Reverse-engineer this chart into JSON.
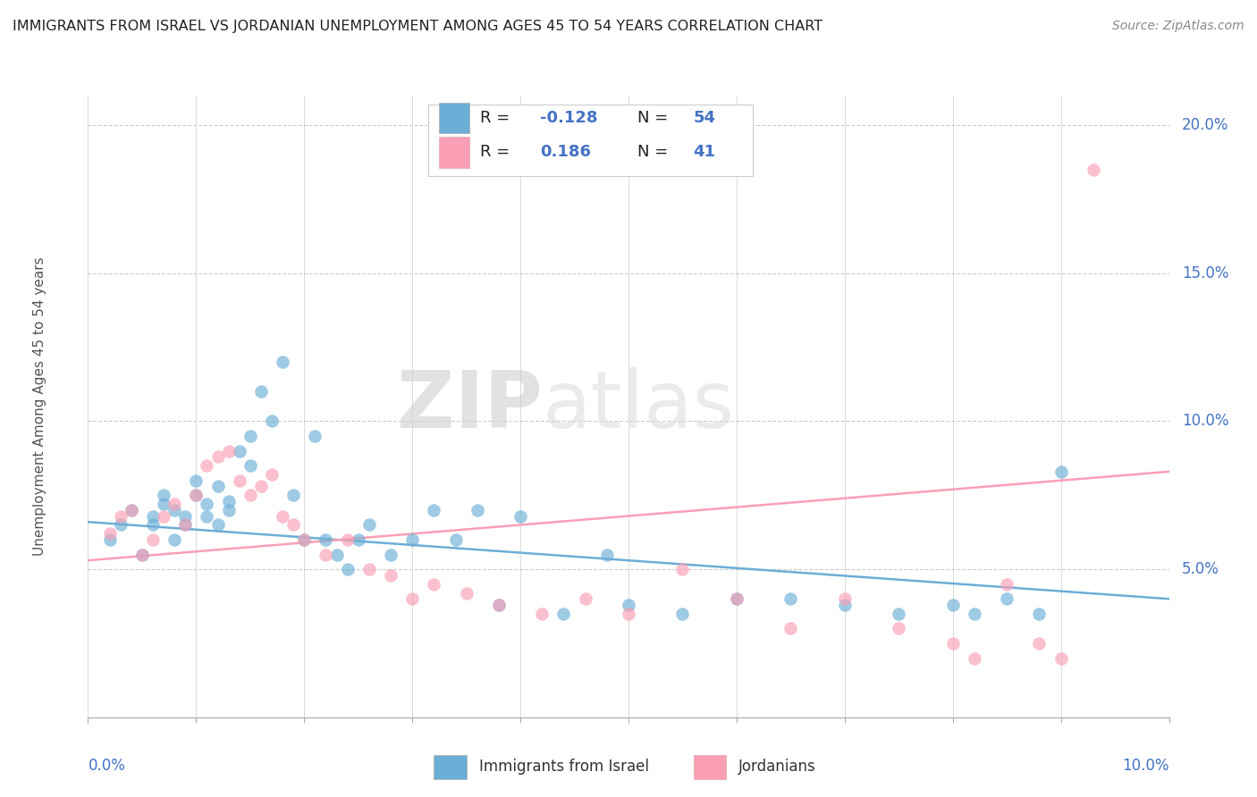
{
  "title": "IMMIGRANTS FROM ISRAEL VS JORDANIAN UNEMPLOYMENT AMONG AGES 45 TO 54 YEARS CORRELATION CHART",
  "source": "Source: ZipAtlas.com",
  "ylabel": "Unemployment Among Ages 45 to 54 years",
  "xlim": [
    0.0,
    0.1
  ],
  "ylim": [
    0.0,
    0.21
  ],
  "yticks": [
    0.05,
    0.1,
    0.15,
    0.2
  ],
  "ytick_labels": [
    "5.0%",
    "10.0%",
    "15.0%",
    "20.0%"
  ],
  "color_blue": "#6baed6",
  "color_pink": "#fa9fb5",
  "israel_x": [
    0.002,
    0.003,
    0.004,
    0.005,
    0.006,
    0.006,
    0.007,
    0.007,
    0.008,
    0.008,
    0.009,
    0.009,
    0.01,
    0.01,
    0.011,
    0.011,
    0.012,
    0.012,
    0.013,
    0.013,
    0.014,
    0.015,
    0.015,
    0.016,
    0.017,
    0.018,
    0.019,
    0.02,
    0.021,
    0.022,
    0.023,
    0.024,
    0.025,
    0.026,
    0.028,
    0.03,
    0.032,
    0.034,
    0.036,
    0.038,
    0.04,
    0.044,
    0.048,
    0.05,
    0.055,
    0.06,
    0.065,
    0.07,
    0.075,
    0.08,
    0.082,
    0.085,
    0.088,
    0.09
  ],
  "israel_y": [
    0.06,
    0.065,
    0.07,
    0.055,
    0.065,
    0.068,
    0.072,
    0.075,
    0.06,
    0.07,
    0.065,
    0.068,
    0.075,
    0.08,
    0.068,
    0.072,
    0.065,
    0.078,
    0.07,
    0.073,
    0.09,
    0.085,
    0.095,
    0.11,
    0.1,
    0.12,
    0.075,
    0.06,
    0.095,
    0.06,
    0.055,
    0.05,
    0.06,
    0.065,
    0.055,
    0.06,
    0.07,
    0.06,
    0.07,
    0.038,
    0.068,
    0.035,
    0.055,
    0.038,
    0.035,
    0.04,
    0.04,
    0.038,
    0.035,
    0.038,
    0.035,
    0.04,
    0.035,
    0.083
  ],
  "jordan_x": [
    0.002,
    0.003,
    0.004,
    0.005,
    0.006,
    0.007,
    0.008,
    0.009,
    0.01,
    0.011,
    0.012,
    0.013,
    0.014,
    0.015,
    0.016,
    0.017,
    0.018,
    0.019,
    0.02,
    0.022,
    0.024,
    0.026,
    0.028,
    0.03,
    0.032,
    0.035,
    0.038,
    0.042,
    0.046,
    0.05,
    0.055,
    0.06,
    0.065,
    0.07,
    0.075,
    0.08,
    0.082,
    0.085,
    0.088,
    0.09,
    0.093
  ],
  "jordan_y": [
    0.062,
    0.068,
    0.07,
    0.055,
    0.06,
    0.068,
    0.072,
    0.065,
    0.075,
    0.085,
    0.088,
    0.09,
    0.08,
    0.075,
    0.078,
    0.082,
    0.068,
    0.065,
    0.06,
    0.055,
    0.06,
    0.05,
    0.048,
    0.04,
    0.045,
    0.042,
    0.038,
    0.035,
    0.04,
    0.035,
    0.05,
    0.04,
    0.03,
    0.04,
    0.03,
    0.025,
    0.02,
    0.045,
    0.025,
    0.02,
    0.185
  ],
  "background_color": "#ffffff",
  "grid_color": "#cccccc",
  "title_color": "#222222",
  "source_color": "#888888",
  "axis_label_color": "#4472c4"
}
